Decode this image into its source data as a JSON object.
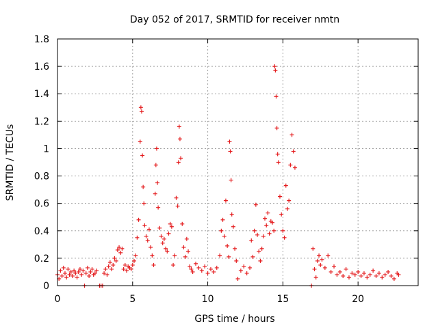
{
  "chart_data": {
    "type": "scatter",
    "title": "Day 052 of 2017, SRMTID for receiver nmtn",
    "xlabel": "GPS time / hours",
    "ylabel": "SRMTID / TECUs",
    "xlim": [
      0,
      24.0
    ],
    "ylim": [
      0,
      1.8
    ],
    "grid": true,
    "marker": "+",
    "marker_color": "#e41a1c",
    "xticks": [
      0,
      5,
      10,
      15,
      20
    ],
    "xtick_labels": [
      "0",
      "5",
      "10",
      "15",
      "20"
    ],
    "yticks": [
      0,
      0.2,
      0.4,
      0.6,
      0.8,
      1.0,
      1.2,
      1.4,
      1.6,
      1.8
    ],
    "ytick_labels": [
      "0",
      "0.2",
      "0.4",
      "0.6",
      "0.8",
      "1",
      "1.2",
      "1.4",
      "1.6",
      "1.8"
    ],
    "series": [
      {
        "name": "SRMTID",
        "x": [
          0.0,
          0.1,
          0.2,
          0.3,
          0.4,
          0.5,
          0.6,
          0.7,
          0.8,
          0.9,
          1.0,
          1.1,
          1.2,
          1.3,
          1.4,
          1.5,
          1.6,
          1.7,
          1.8,
          1.9,
          2.0,
          2.1,
          2.2,
          2.3,
          2.4,
          2.5,
          2.6,
          2.8,
          2.9,
          3.0,
          3.1,
          3.2,
          3.3,
          3.4,
          3.5,
          3.6,
          3.7,
          3.8,
          3.9,
          4.0,
          4.1,
          4.2,
          4.3,
          4.4,
          4.5,
          4.6,
          4.7,
          4.8,
          4.9,
          5.0,
          5.1,
          5.2,
          5.3,
          5.4,
          5.5,
          5.55,
          5.6,
          5.65,
          5.7,
          5.75,
          5.8,
          5.9,
          6.0,
          6.1,
          6.2,
          6.3,
          6.4,
          6.5,
          6.55,
          6.6,
          6.65,
          6.7,
          6.8,
          6.9,
          7.0,
          7.1,
          7.2,
          7.3,
          7.4,
          7.5,
          7.6,
          7.7,
          7.8,
          7.9,
          8.0,
          8.05,
          8.1,
          8.15,
          8.2,
          8.3,
          8.4,
          8.5,
          8.6,
          8.7,
          8.8,
          8.9,
          9.0,
          9.2,
          9.4,
          9.6,
          9.8,
          10.0,
          10.2,
          10.4,
          10.6,
          10.8,
          10.9,
          11.0,
          11.1,
          11.2,
          11.3,
          11.4,
          11.45,
          11.5,
          11.55,
          11.6,
          11.7,
          11.8,
          11.9,
          12.0,
          12.2,
          12.4,
          12.6,
          12.8,
          12.9,
          13.0,
          13.1,
          13.2,
          13.3,
          13.4,
          13.5,
          13.6,
          13.7,
          13.8,
          13.9,
          14.0,
          14.1,
          14.2,
          14.3,
          14.4,
          14.45,
          14.5,
          14.55,
          14.6,
          14.65,
          14.7,
          14.8,
          14.9,
          15.0,
          15.1,
          15.2,
          15.3,
          15.4,
          15.5,
          15.6,
          15.7,
          15.8,
          16.9,
          17.0,
          17.1,
          17.2,
          17.3,
          17.4,
          17.5,
          17.6,
          17.8,
          18.0,
          18.2,
          18.4,
          18.6,
          18.8,
          19.0,
          19.2,
          19.4,
          19.6,
          19.8,
          20.0,
          20.2,
          20.4,
          20.6,
          20.8,
          21.0,
          21.2,
          21.4,
          21.6,
          21.8,
          22.0,
          22.2,
          22.4,
          22.6,
          22.7
        ],
        "y": [
          0.08,
          0.05,
          0.11,
          0.07,
          0.13,
          0.09,
          0.06,
          0.12,
          0.08,
          0.1,
          0.07,
          0.11,
          0.09,
          0.06,
          0.1,
          0.12,
          0.08,
          0.11,
          0.0,
          0.09,
          0.13,
          0.07,
          0.1,
          0.12,
          0.08,
          0.09,
          0.11,
          0.0,
          0.0,
          0.0,
          0.09,
          0.12,
          0.08,
          0.14,
          0.17,
          0.12,
          0.15,
          0.2,
          0.18,
          0.26,
          0.28,
          0.24,
          0.27,
          0.12,
          0.15,
          0.11,
          0.14,
          0.13,
          0.12,
          0.15,
          0.18,
          0.22,
          0.35,
          0.48,
          1.05,
          1.3,
          1.27,
          0.95,
          0.72,
          0.6,
          0.44,
          0.36,
          0.33,
          0.41,
          0.28,
          0.22,
          0.15,
          0.67,
          0.88,
          1.0,
          0.75,
          0.57,
          0.42,
          0.36,
          0.31,
          0.34,
          0.27,
          0.25,
          0.38,
          0.45,
          0.43,
          0.15,
          0.22,
          0.64,
          0.58,
          0.9,
          1.16,
          1.07,
          0.93,
          0.45,
          0.28,
          0.21,
          0.34,
          0.25,
          0.14,
          0.12,
          0.1,
          0.16,
          0.13,
          0.11,
          0.14,
          0.09,
          0.12,
          0.1,
          0.13,
          0.22,
          0.4,
          0.48,
          0.36,
          0.62,
          0.29,
          0.21,
          1.05,
          0.98,
          0.77,
          0.52,
          0.43,
          0.27,
          0.18,
          0.05,
          0.11,
          0.14,
          0.09,
          0.13,
          0.33,
          0.21,
          0.4,
          0.59,
          0.37,
          0.25,
          0.18,
          0.27,
          0.36,
          0.49,
          0.44,
          0.53,
          0.38,
          0.47,
          0.46,
          0.4,
          1.6,
          1.57,
          1.38,
          1.15,
          0.96,
          0.9,
          0.65,
          0.52,
          0.4,
          0.35,
          0.73,
          0.56,
          0.62,
          0.88,
          1.1,
          0.98,
          0.86,
          0.0,
          0.27,
          0.12,
          0.06,
          0.18,
          0.22,
          0.15,
          0.19,
          0.13,
          0.22,
          0.1,
          0.14,
          0.08,
          0.1,
          0.07,
          0.12,
          0.06,
          0.09,
          0.08,
          0.1,
          0.07,
          0.09,
          0.06,
          0.08,
          0.11,
          0.07,
          0.09,
          0.06,
          0.08,
          0.1,
          0.07,
          0.05,
          0.09,
          0.08
        ]
      }
    ]
  }
}
